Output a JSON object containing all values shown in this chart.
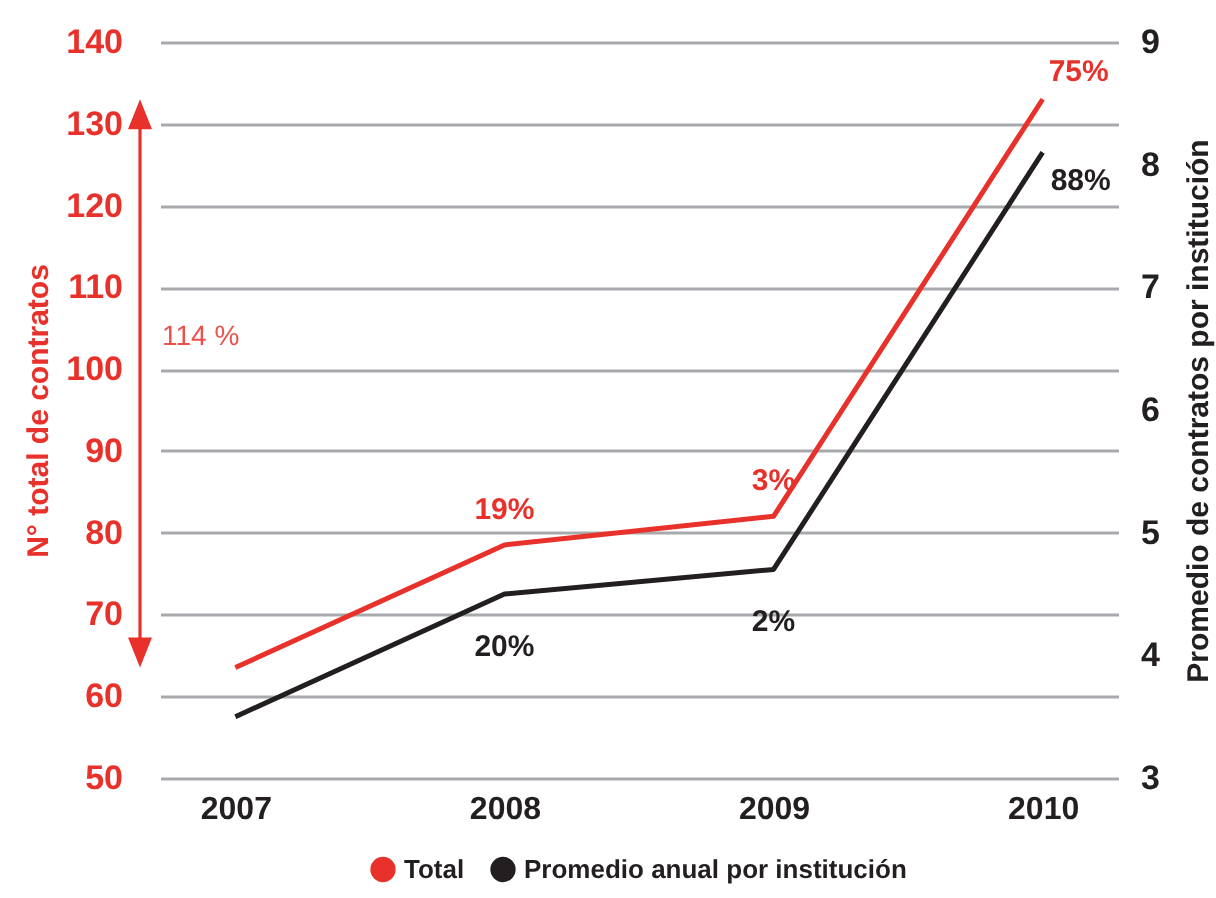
{
  "chart_data": {
    "type": "line",
    "categories": [
      "2007",
      "2008",
      "2009",
      "2010"
    ],
    "ylabel": "N° total de contratos",
    "y2label": "Promedio de contratos por institución",
    "ylim": [
      50,
      140
    ],
    "yticks": [
      50,
      60,
      70,
      80,
      90,
      100,
      110,
      120,
      130,
      140
    ],
    "y2lim": [
      3,
      9
    ],
    "y2ticks": [
      3,
      4,
      5,
      6,
      7,
      8,
      9
    ],
    "grid": "y",
    "legend": "bottom",
    "line_style": "solid",
    "annotations": [
      "114 %",
      {
        "text": "19%",
        "x": "2008",
        "y": 78.5
      },
      {
        "text": "3%",
        "x": "2009",
        "y": 82
      },
      {
        "text": "75%",
        "x": "2010",
        "y": 133
      },
      {
        "text": "20%",
        "x": "2008",
        "y": 72.5
      },
      {
        "text": "2%",
        "x": "2009",
        "y": 75.5
      },
      {
        "text": "88%",
        "x": "2010",
        "y": 126.5
      }
    ],
    "series": [
      {
        "name": "Total",
        "color": "#e8312a",
        "values": [
          63.5,
          78.5,
          82,
          133
        ]
      },
      {
        "name": "Promedio anual por institución",
        "color": "#231f20",
        "axis": "y2",
        "values": [
          3.5,
          4.5,
          4.7,
          8.1
        ]
      }
    ]
  }
}
